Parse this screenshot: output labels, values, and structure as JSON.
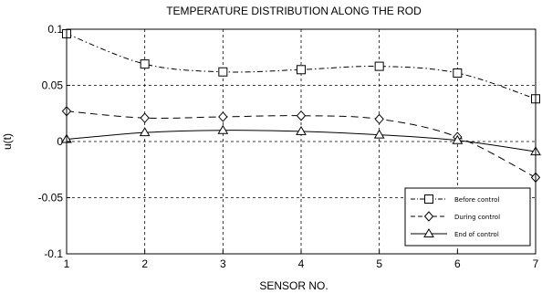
{
  "chart_data": {
    "type": "line",
    "title": "TEMPERATURE DISTRIBUTION ALONG THE ROD",
    "xlabel": "SENSOR NO.",
    "ylabel": "u(t)",
    "xlim": [
      1,
      7
    ],
    "ylim": [
      -0.1,
      0.1
    ],
    "x_ticks": [
      1,
      2,
      3,
      4,
      5,
      6,
      7
    ],
    "y_ticks": [
      -0.1,
      -0.05,
      0,
      0.05,
      0.1
    ],
    "y_tick_labels": [
      "-0.1",
      "-0.05",
      "0",
      "0.05",
      "0.1"
    ],
    "grid": true,
    "legend_position": "bottom-right",
    "x": [
      1,
      2,
      3,
      4,
      5,
      6,
      7
    ],
    "series": [
      {
        "name": "Before control",
        "marker": "square",
        "line_style": "dash-dot",
        "values": [
          0.096,
          0.069,
          0.062,
          0.064,
          0.067,
          0.061,
          0.038
        ]
      },
      {
        "name": "During control",
        "marker": "diamond",
        "line_style": "dashed",
        "values": [
          0.027,
          0.021,
          0.022,
          0.023,
          0.02,
          0.004,
          -0.032
        ]
      },
      {
        "name": "End of control",
        "marker": "triangle",
        "line_style": "solid",
        "values": [
          0.002,
          0.008,
          0.01,
          0.009,
          0.006,
          0.001,
          -0.009
        ]
      }
    ]
  }
}
